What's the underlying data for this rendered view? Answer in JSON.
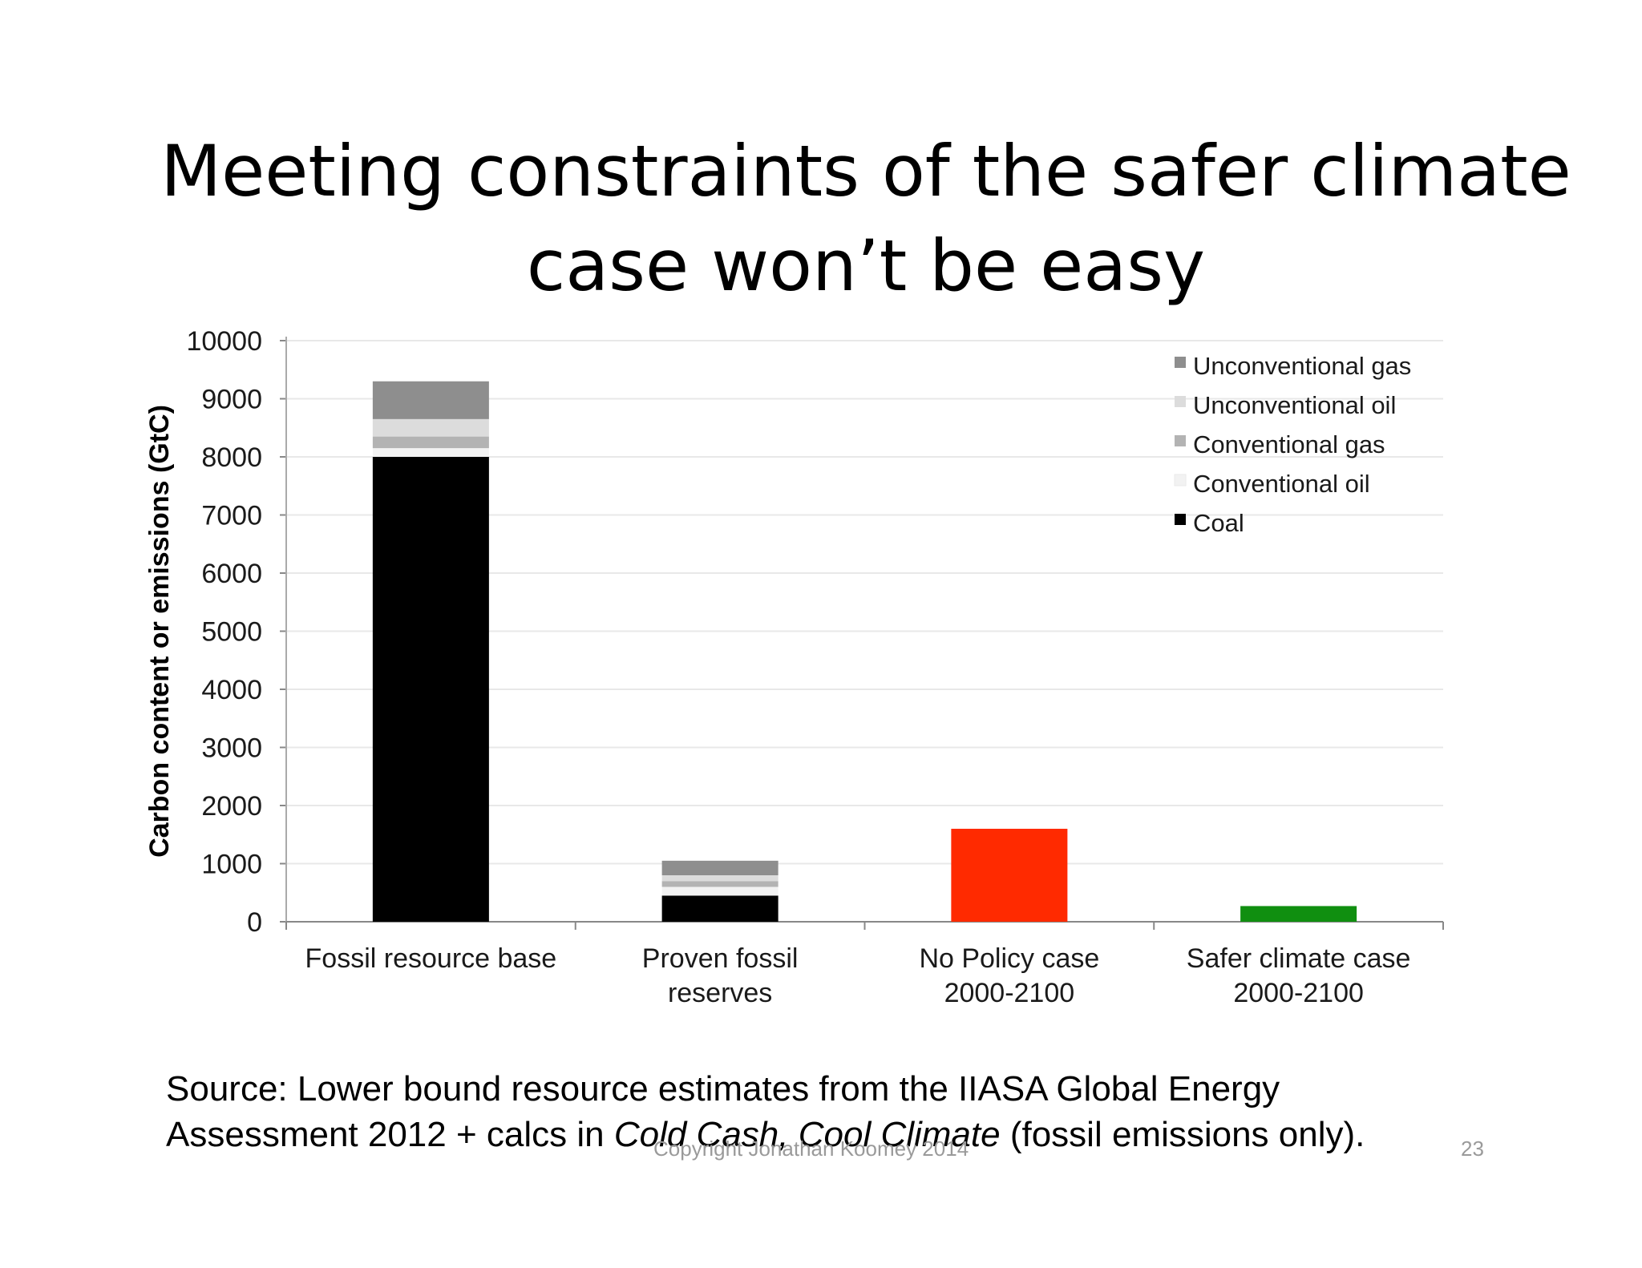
{
  "slide": {
    "title_line1": "Meeting constraints of the safer climate",
    "title_line2": "case won’t be easy",
    "source_prefix": "Source: Lower bound resource estimates from the IIASA Global Energy Assessment 2012 + calcs in ",
    "source_italic": "Cold Cash, Cool Climate",
    "source_suffix": " (fossil emissions only).",
    "copyright": "Copyright Jonathan Koomey 2014",
    "page_number": "23"
  },
  "chart_data": {
    "type": "bar",
    "stacked": true,
    "ylabel": "Carbon content or emissions (GtC)",
    "ylim": [
      0,
      10000
    ],
    "yticks": [
      0,
      1000,
      2000,
      3000,
      4000,
      5000,
      6000,
      7000,
      8000,
      9000,
      10000
    ],
    "grid": true,
    "legend_position": "top-right",
    "categories": [
      [
        "Fossil resource base"
      ],
      [
        "Proven fossil",
        "reserves"
      ],
      [
        "No Policy case",
        "2000-2100"
      ],
      [
        "Safer climate case",
        "2000-2100"
      ]
    ],
    "series": [
      {
        "name": "Coal",
        "color": "#000000",
        "values": [
          8000,
          450,
          0,
          0
        ]
      },
      {
        "name": "Conventional oil",
        "color": "#f2f2f2",
        "values": [
          150,
          150,
          0,
          0
        ]
      },
      {
        "name": "Conventional gas",
        "color": "#b3b3b3",
        "values": [
          200,
          100,
          0,
          0
        ]
      },
      {
        "name": "Unconventional oil",
        "color": "#dcdcdc",
        "values": [
          300,
          100,
          0,
          0
        ]
      },
      {
        "name": "Unconventional gas",
        "color": "#8e8e8e",
        "values": [
          650,
          250,
          0,
          0
        ]
      }
    ],
    "scenario_bars": [
      {
        "category_index": 2,
        "value": 1600,
        "color": "#ff2a00"
      },
      {
        "category_index": 3,
        "value": 270,
        "color": "#108f10"
      }
    ],
    "legend_order": [
      "Unconventional gas",
      "Unconventional oil",
      "Conventional gas",
      "Conventional oil",
      "Coal"
    ]
  }
}
